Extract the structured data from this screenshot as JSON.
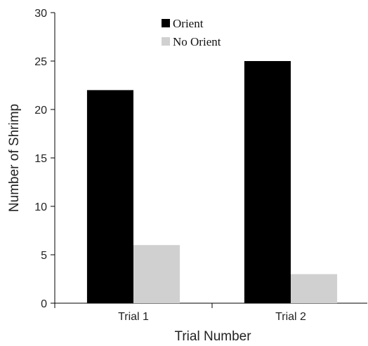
{
  "chart_data": {
    "type": "bar",
    "categories": [
      "Trial 1",
      "Trial 2"
    ],
    "series": [
      {
        "name": "Orient",
        "values": [
          22,
          25
        ],
        "color": "#000000"
      },
      {
        "name": "No Orient",
        "values": [
          6,
          3
        ],
        "color": "#d0d0d0"
      }
    ],
    "xlabel": "Trial Number",
    "ylabel": "Number of Shrimp",
    "ylim": [
      0,
      30
    ],
    "yticks": [
      0,
      5,
      10,
      15,
      20,
      25,
      30
    ],
    "grid": false,
    "legend_position": "top-center"
  }
}
